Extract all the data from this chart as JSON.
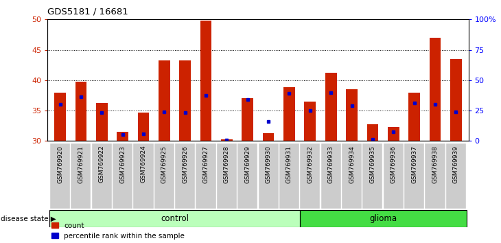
{
  "title": "GDS5181 / 16681",
  "samples": [
    "GSM769920",
    "GSM769921",
    "GSM769922",
    "GSM769923",
    "GSM769924",
    "GSM769925",
    "GSM769926",
    "GSM769927",
    "GSM769928",
    "GSM769929",
    "GSM769930",
    "GSM769931",
    "GSM769932",
    "GSM769933",
    "GSM769934",
    "GSM769935",
    "GSM769936",
    "GSM769937",
    "GSM769938",
    "GSM769939"
  ],
  "count_values": [
    38.0,
    39.8,
    36.3,
    31.5,
    34.7,
    43.2,
    43.2,
    49.8,
    30.3,
    37.0,
    31.3,
    38.8,
    36.5,
    41.2,
    38.5,
    32.7,
    32.3,
    38.0,
    47.0,
    43.5
  ],
  "percentile_values": [
    36.0,
    37.3,
    34.7,
    31.0,
    31.2,
    34.8,
    34.7,
    37.5,
    30.2,
    36.8,
    33.2,
    37.8,
    35.0,
    38.0,
    35.8,
    30.3,
    31.5,
    36.2,
    36.0,
    34.8
  ],
  "groups": {
    "control": [
      0,
      1,
      2,
      3,
      4,
      5,
      6,
      7,
      8,
      9,
      10,
      11
    ],
    "glioma": [
      12,
      13,
      14,
      15,
      16,
      17,
      18,
      19
    ]
  },
  "bar_color": "#cc2200",
  "dot_color": "#0000cc",
  "ymin": 30,
  "ymax": 50,
  "yticks": [
    30,
    35,
    40,
    45,
    50
  ],
  "right_yticks": [
    0,
    25,
    50,
    75,
    100
  ],
  "right_yticklabels": [
    "0",
    "25",
    "50",
    "75",
    "100%"
  ],
  "control_color": "#bbffbb",
  "glioma_color": "#44dd44",
  "bar_width": 0.55,
  "bg_color": "#cccccc",
  "label_box_color": "#cccccc"
}
